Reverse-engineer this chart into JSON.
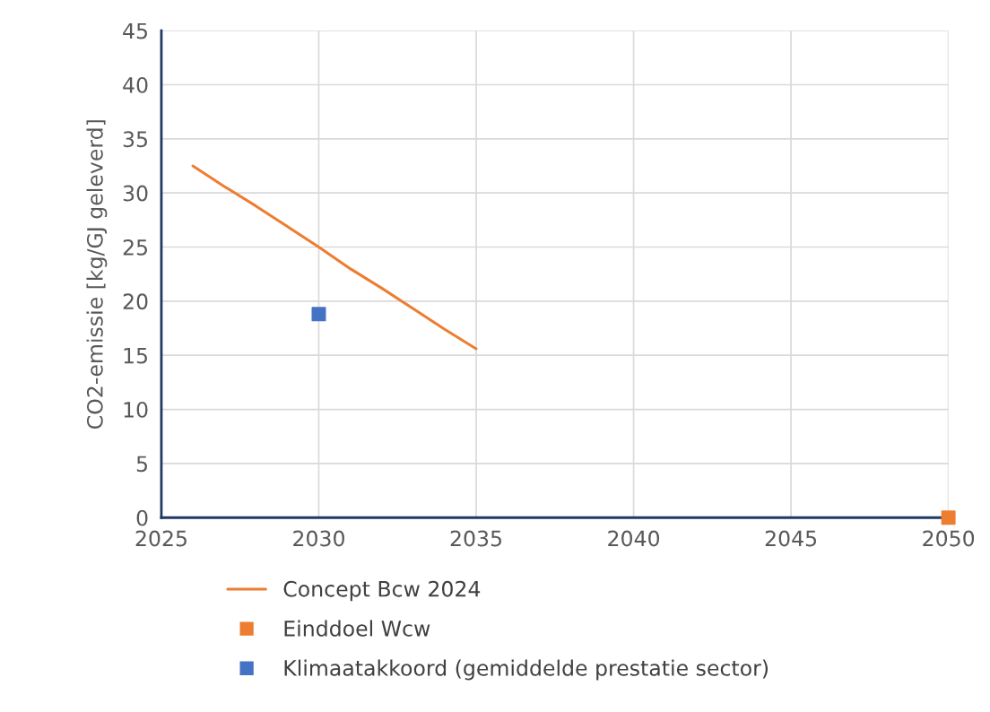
{
  "chart_data": {
    "type": "line",
    "ylabel": "CO2-emissie [kg/GJ geleverd]",
    "xlim": [
      2025,
      2050
    ],
    "xticks": [
      2025,
      2030,
      2035,
      2040,
      2045,
      2050
    ],
    "ylim": [
      0,
      45
    ],
    "yticks": [
      0,
      5,
      10,
      15,
      20,
      25,
      30,
      35,
      40,
      45
    ],
    "grid": true,
    "legend": "bottom",
    "series": [
      {
        "name": "Concept Bcw 2024",
        "color": "#ed7d31",
        "marker": "none",
        "x": [
          2026,
          2027,
          2028,
          2029,
          2030,
          2031,
          2032,
          2033,
          2034,
          2035
        ],
        "values": [
          32.5,
          30.6,
          28.8,
          26.9,
          25.0,
          23.0,
          21.2,
          19.3,
          17.4,
          15.6
        ]
      },
      {
        "name": "Einddoel Wcw",
        "type": "scatter",
        "color": "#ed7d31",
        "marker": "square",
        "x": [
          2050
        ],
        "values": [
          0
        ]
      },
      {
        "name": "Klimaatakkoord (gemiddelde prestatie sector)",
        "type": "scatter",
        "color": "#4472c4",
        "marker": "square",
        "x": [
          2030
        ],
        "values": [
          18.8
        ]
      }
    ]
  }
}
